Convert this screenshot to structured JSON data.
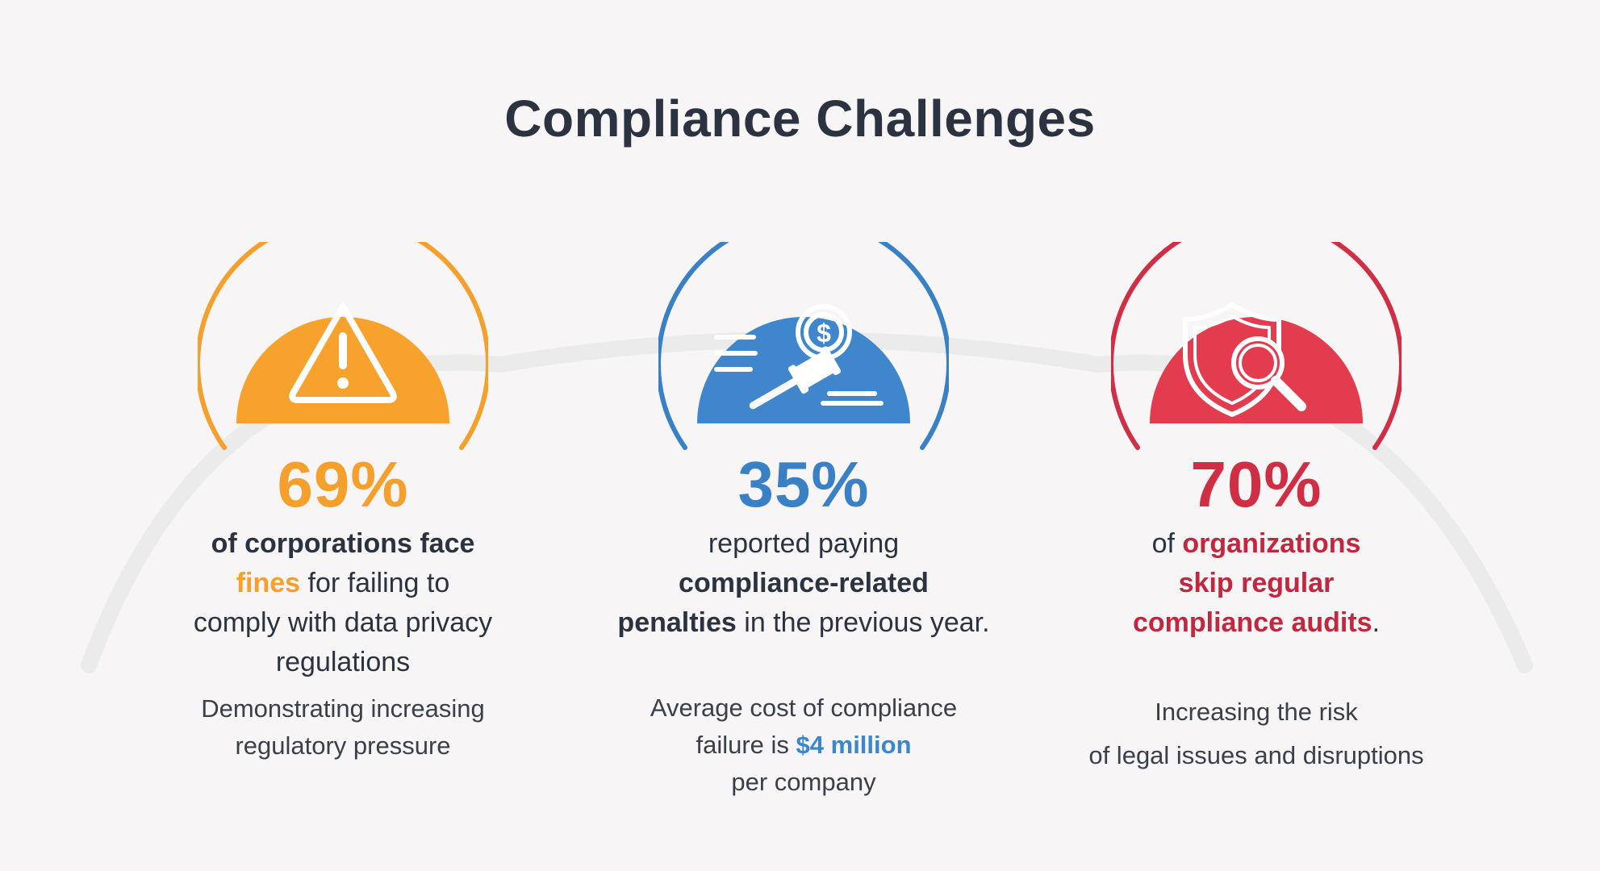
{
  "title": "Compliance Challenges",
  "colors": {
    "orange": "#f5a02c",
    "blue": "#3a80c5",
    "red": "#cf2e44",
    "text": "#2b3240"
  },
  "cards": [
    {
      "icon": "warning-triangle-icon",
      "percent": "69%",
      "main": {
        "l1": "of corporations face",
        "l2_hl": "fines",
        "l2_rest": " for failing to",
        "l3": "comply with data privacy",
        "l4": "regulations"
      },
      "sub": {
        "l1": "Demonstrating increasing",
        "l2": "regulatory pressure"
      }
    },
    {
      "icon": "gavel-dollar-icon",
      "percent": "35%",
      "main": {
        "l1": "reported paying",
        "l2": "compliance-related",
        "l3_b": "penalties",
        "l3_rest": " in the previous year."
      },
      "sub": {
        "l1": "Average cost of compliance",
        "l2_pre": "failure is ",
        "l2_hl": "$4 million",
        "l3": "per company"
      }
    },
    {
      "icon": "shield-search-icon",
      "percent": "70%",
      "main": {
        "l1_pre": "of ",
        "l1_hl": "organizations",
        "l2": "skip regular",
        "l3_hl": "compliance audits",
        "l3_rest": "."
      },
      "sub": {
        "l1": "Increasing the risk",
        "l2": "of legal issues and disruptions"
      }
    }
  ]
}
